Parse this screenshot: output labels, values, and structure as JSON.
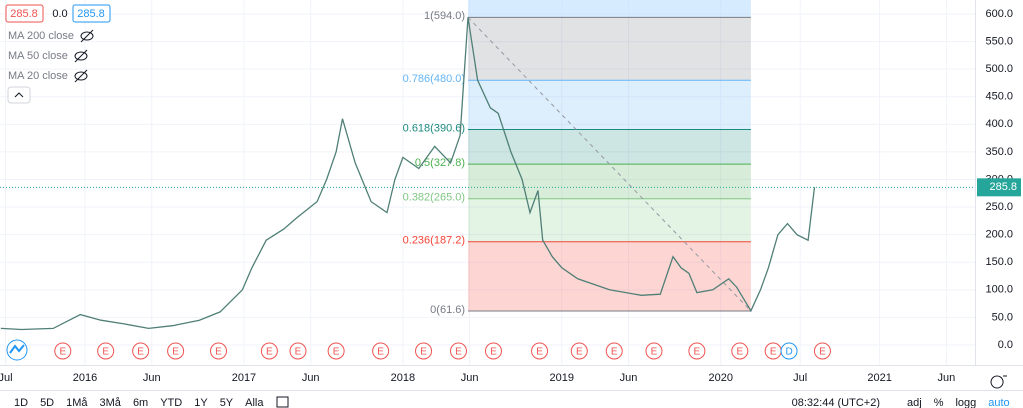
{
  "header": {
    "price_open": "285.8",
    "change": "0.0",
    "price_close": "285.8",
    "indicators": [
      "MA 200 close",
      "MA 50 close",
      "MA 20 close"
    ]
  },
  "toolbar": {
    "ranges": [
      "1D",
      "5D",
      "1Må",
      "3Må",
      "6m",
      "YTD",
      "1Y",
      "5Y",
      "Alla"
    ],
    "clock": "08:32:44 (UTC+2)",
    "options": [
      "adj",
      "%",
      "logg",
      "auto"
    ]
  },
  "chart_data": {
    "type": "line",
    "x": [
      2015.47,
      2015.6,
      2015.8,
      2015.97,
      2016.1,
      2016.25,
      2016.4,
      2016.55,
      2016.72,
      2016.85,
      2016.99,
      2017.05,
      2017.14,
      2017.25,
      2017.33,
      2017.46,
      2017.52,
      2017.58,
      2017.62,
      2017.7,
      2017.8,
      2017.9,
      2017.95,
      2018.0,
      2018.1,
      2018.2,
      2018.3,
      2018.36,
      2018.41,
      2018.47,
      2018.55,
      2018.6,
      2018.68,
      2018.75,
      2018.8,
      2018.85,
      2018.88,
      2018.94,
      2019.0,
      2019.1,
      2019.2,
      2019.3,
      2019.5,
      2019.62,
      2019.7,
      2019.75,
      2019.8,
      2019.85,
      2019.95,
      2020.05,
      2020.1,
      2020.19,
      2020.25,
      2020.3,
      2020.36,
      2020.42,
      2020.48,
      2020.55,
      2020.59
    ],
    "series": [
      {
        "name": "close",
        "color": "#4f7f76",
        "values": [
          30,
          28,
          30,
          55,
          45,
          38,
          30,
          35,
          45,
          60,
          100,
          140,
          190,
          210,
          230,
          260,
          300,
          350,
          410,
          330,
          260,
          240,
          300,
          340,
          320,
          360,
          330,
          380,
          594,
          480,
          430,
          420,
          350,
          300,
          240,
          280,
          190,
          160,
          140,
          120,
          110,
          100,
          90,
          92,
          160,
          140,
          130,
          95,
          100,
          120,
          105,
          62,
          100,
          140,
          200,
          220,
          200,
          190,
          286
        ]
      }
    ],
    "xlim": [
      2015.465,
      2021.6
    ],
    "ylim": [
      -36.3,
      625.4
    ],
    "xticks": [
      {
        "value": 2015.5,
        "label": "Jul"
      },
      {
        "value": 2016,
        "label": "2016"
      },
      {
        "value": 2016.42,
        "label": "Jun"
      },
      {
        "value": 2017,
        "label": "2017"
      },
      {
        "value": 2017.42,
        "label": "Jun"
      },
      {
        "value": 2018,
        "label": "2018"
      },
      {
        "value": 2018.42,
        "label": "Jun"
      },
      {
        "value": 2019,
        "label": "2019"
      },
      {
        "value": 2019.42,
        "label": "Jun"
      },
      {
        "value": 2020,
        "label": "2020"
      },
      {
        "value": 2020.5,
        "label": "Jul"
      },
      {
        "value": 2021,
        "label": "2021"
      },
      {
        "value": 2021.42,
        "label": "Jun"
      }
    ],
    "yticks": [
      {
        "value": 0,
        "label": "0.0"
      },
      {
        "value": 50,
        "label": "50.0"
      },
      {
        "value": 100,
        "label": "100.0"
      },
      {
        "value": 150,
        "label": "150.0"
      },
      {
        "value": 200,
        "label": "200.0"
      },
      {
        "value": 250,
        "label": "250.0"
      },
      {
        "value": 300,
        "label": "300.0"
      },
      {
        "value": 350,
        "label": "350.0"
      },
      {
        "value": 400,
        "label": "400.0"
      },
      {
        "value": 450,
        "label": "450.0"
      },
      {
        "value": 500,
        "label": "500.0"
      },
      {
        "value": 550,
        "label": "550.0"
      },
      {
        "value": 600,
        "label": "600.0"
      }
    ],
    "last_price": 285.8,
    "last_price_color": "#26a69a",
    "fib": {
      "x": [
        2018.41,
        2020.19
      ],
      "levels": [
        {
          "value": 594.0,
          "label": "1(594.0)",
          "color": "#787b86"
        },
        {
          "value": 480.0,
          "label": "0.786(480.0)",
          "color": "#64b5f6"
        },
        {
          "value": 390.6,
          "label": "0.618(390.6)",
          "color": "#1b8a7e"
        },
        {
          "value": 327.8,
          "label": "0.5(327.8)",
          "color": "#4caf50"
        },
        {
          "value": 265.0,
          "label": "0.382(265.0)",
          "color": "#81c784"
        },
        {
          "value": 187.2,
          "label": "0.236(187.2)",
          "color": "#f44336"
        },
        {
          "value": 61.6,
          "label": "0(61.6)",
          "color": "#787b86"
        }
      ]
    },
    "events": [
      {
        "label": "E",
        "x": 2015.86
      },
      {
        "label": "E",
        "x": 2016.13
      },
      {
        "label": "E",
        "x": 2016.35
      },
      {
        "label": "E",
        "x": 2016.57
      },
      {
        "label": "E",
        "x": 2016.84
      },
      {
        "label": "E",
        "x": 2017.16
      },
      {
        "label": "E",
        "x": 2017.34
      },
      {
        "label": "E",
        "x": 2017.58
      },
      {
        "label": "E",
        "x": 2017.86
      },
      {
        "label": "E",
        "x": 2018.13
      },
      {
        "label": "E",
        "x": 2018.35
      },
      {
        "label": "E",
        "x": 2018.57
      },
      {
        "label": "E",
        "x": 2018.86
      },
      {
        "label": "E",
        "x": 2019.11
      },
      {
        "label": "E",
        "x": 2019.33
      },
      {
        "label": "E",
        "x": 2019.58
      },
      {
        "label": "E",
        "x": 2019.85
      },
      {
        "label": "E",
        "x": 2020.12
      },
      {
        "label": "E",
        "x": 2020.33
      },
      {
        "label": "D",
        "x": 2020.43
      },
      {
        "label": "E",
        "x": 2020.64
      }
    ]
  }
}
